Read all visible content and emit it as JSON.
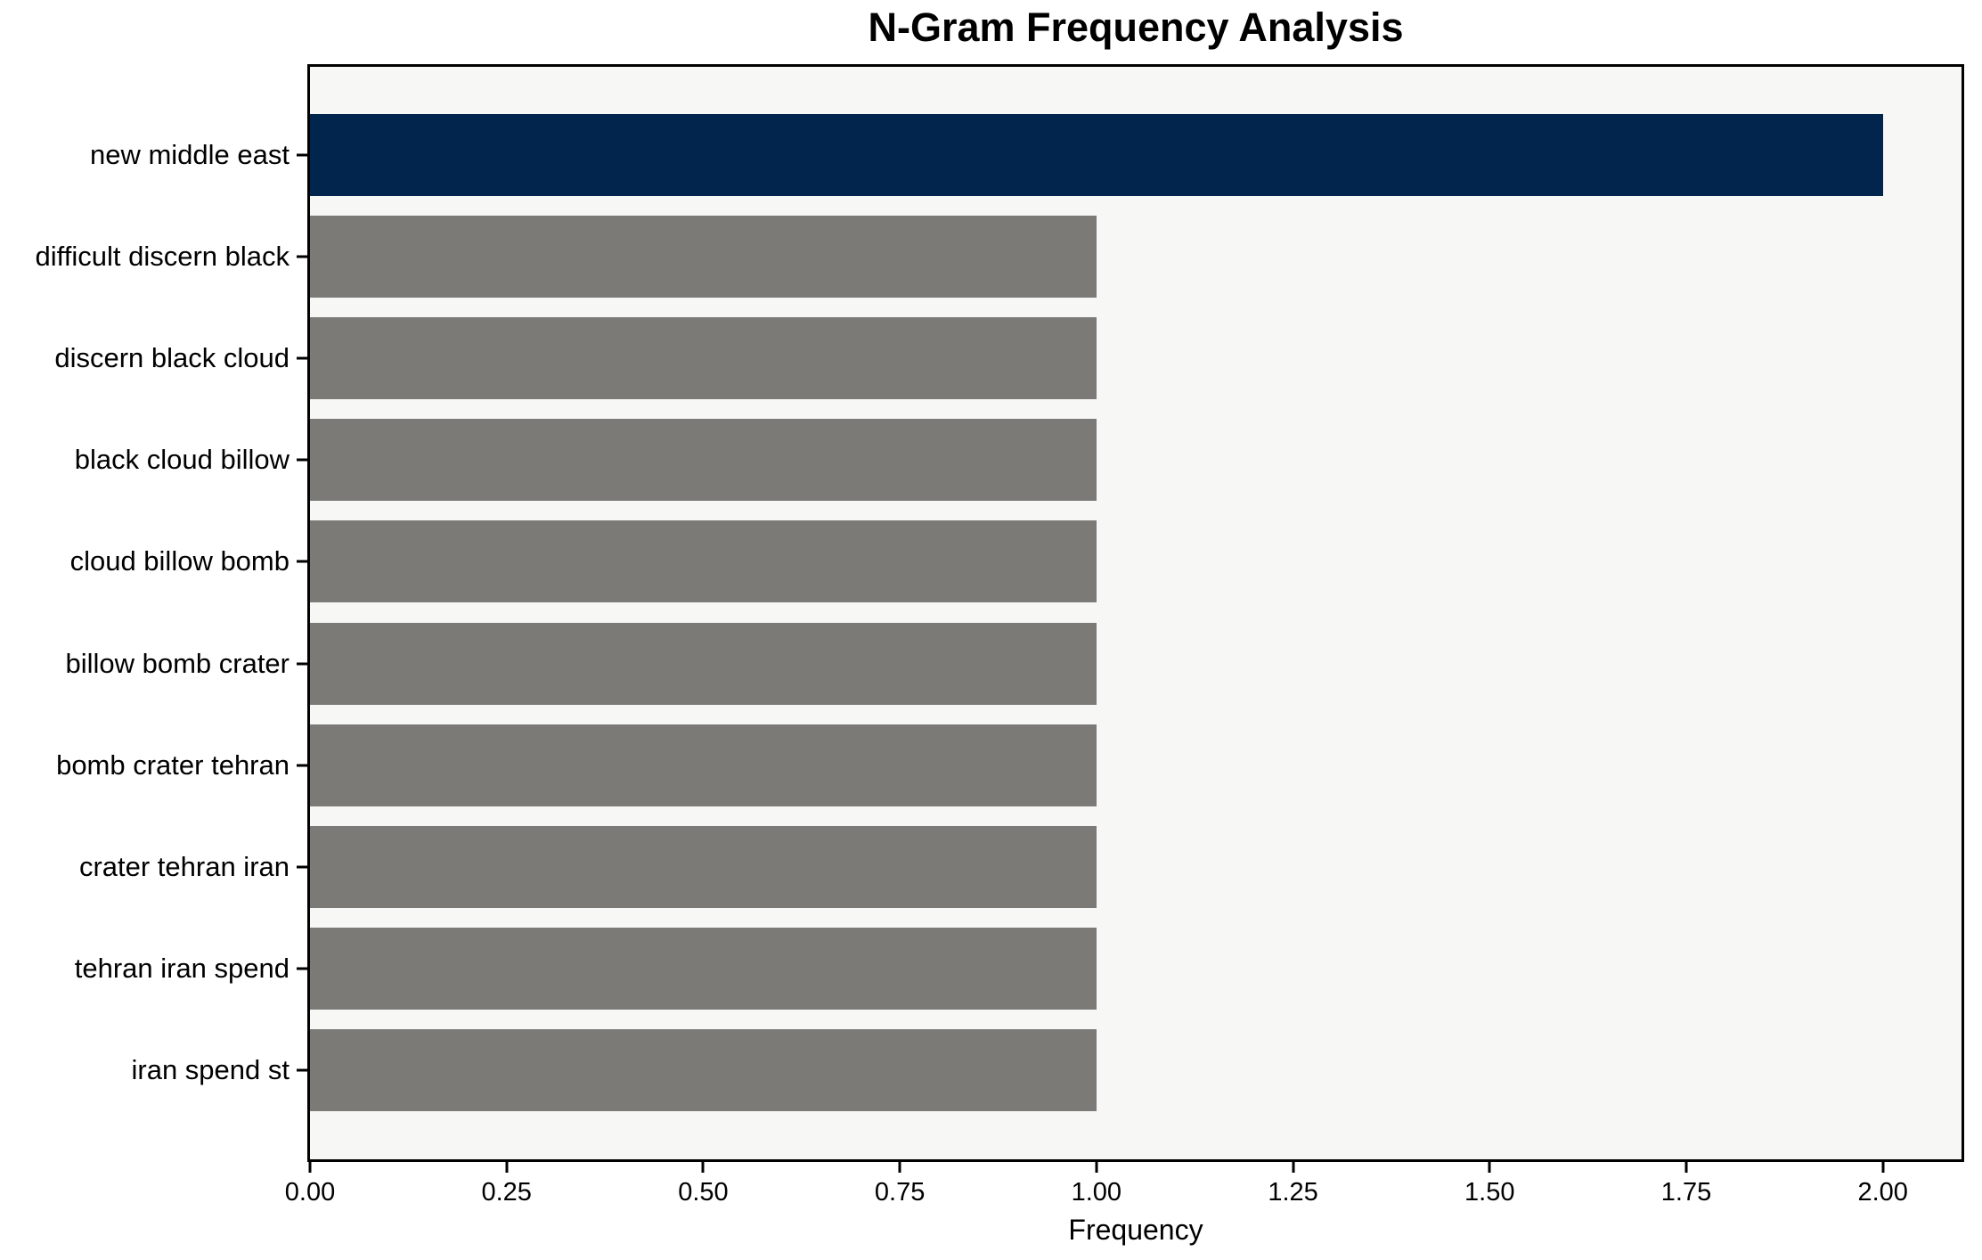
{
  "chart_data": {
    "type": "bar",
    "orientation": "horizontal",
    "title": "N-Gram Frequency Analysis",
    "xlabel": "Frequency",
    "ylabel": "",
    "categories": [
      "new middle east",
      "difficult discern black",
      "discern black cloud",
      "black cloud billow",
      "cloud billow bomb",
      "billow bomb crater",
      "bomb crater tehran",
      "crater tehran iran",
      "tehran iran spend",
      "iran spend st"
    ],
    "values": [
      2.0,
      1.0,
      1.0,
      1.0,
      1.0,
      1.0,
      1.0,
      1.0,
      1.0,
      1.0
    ],
    "bar_colors": [
      "#02254e",
      "#7b7a76",
      "#7b7a76",
      "#7b7a76",
      "#7b7a76",
      "#7b7a76",
      "#7b7a76",
      "#7b7a76",
      "#7b7a76",
      "#7b7a76"
    ],
    "xlim": [
      0,
      2.1
    ],
    "xticks": [
      "0.00",
      "0.25",
      "0.50",
      "0.75",
      "1.00",
      "1.25",
      "1.50",
      "1.75",
      "2.00"
    ],
    "xtick_values": [
      0.0,
      0.25,
      0.5,
      0.75,
      1.0,
      1.25,
      1.5,
      1.75,
      2.0
    ],
    "grid": false,
    "legend": null,
    "colors": {
      "highlight_bar": "#02254e",
      "default_bar": "#7b7a76",
      "plot_background": "#f7f7f6",
      "page_background": "#ffffff",
      "spine": "#000000",
      "text": "#000000"
    }
  }
}
